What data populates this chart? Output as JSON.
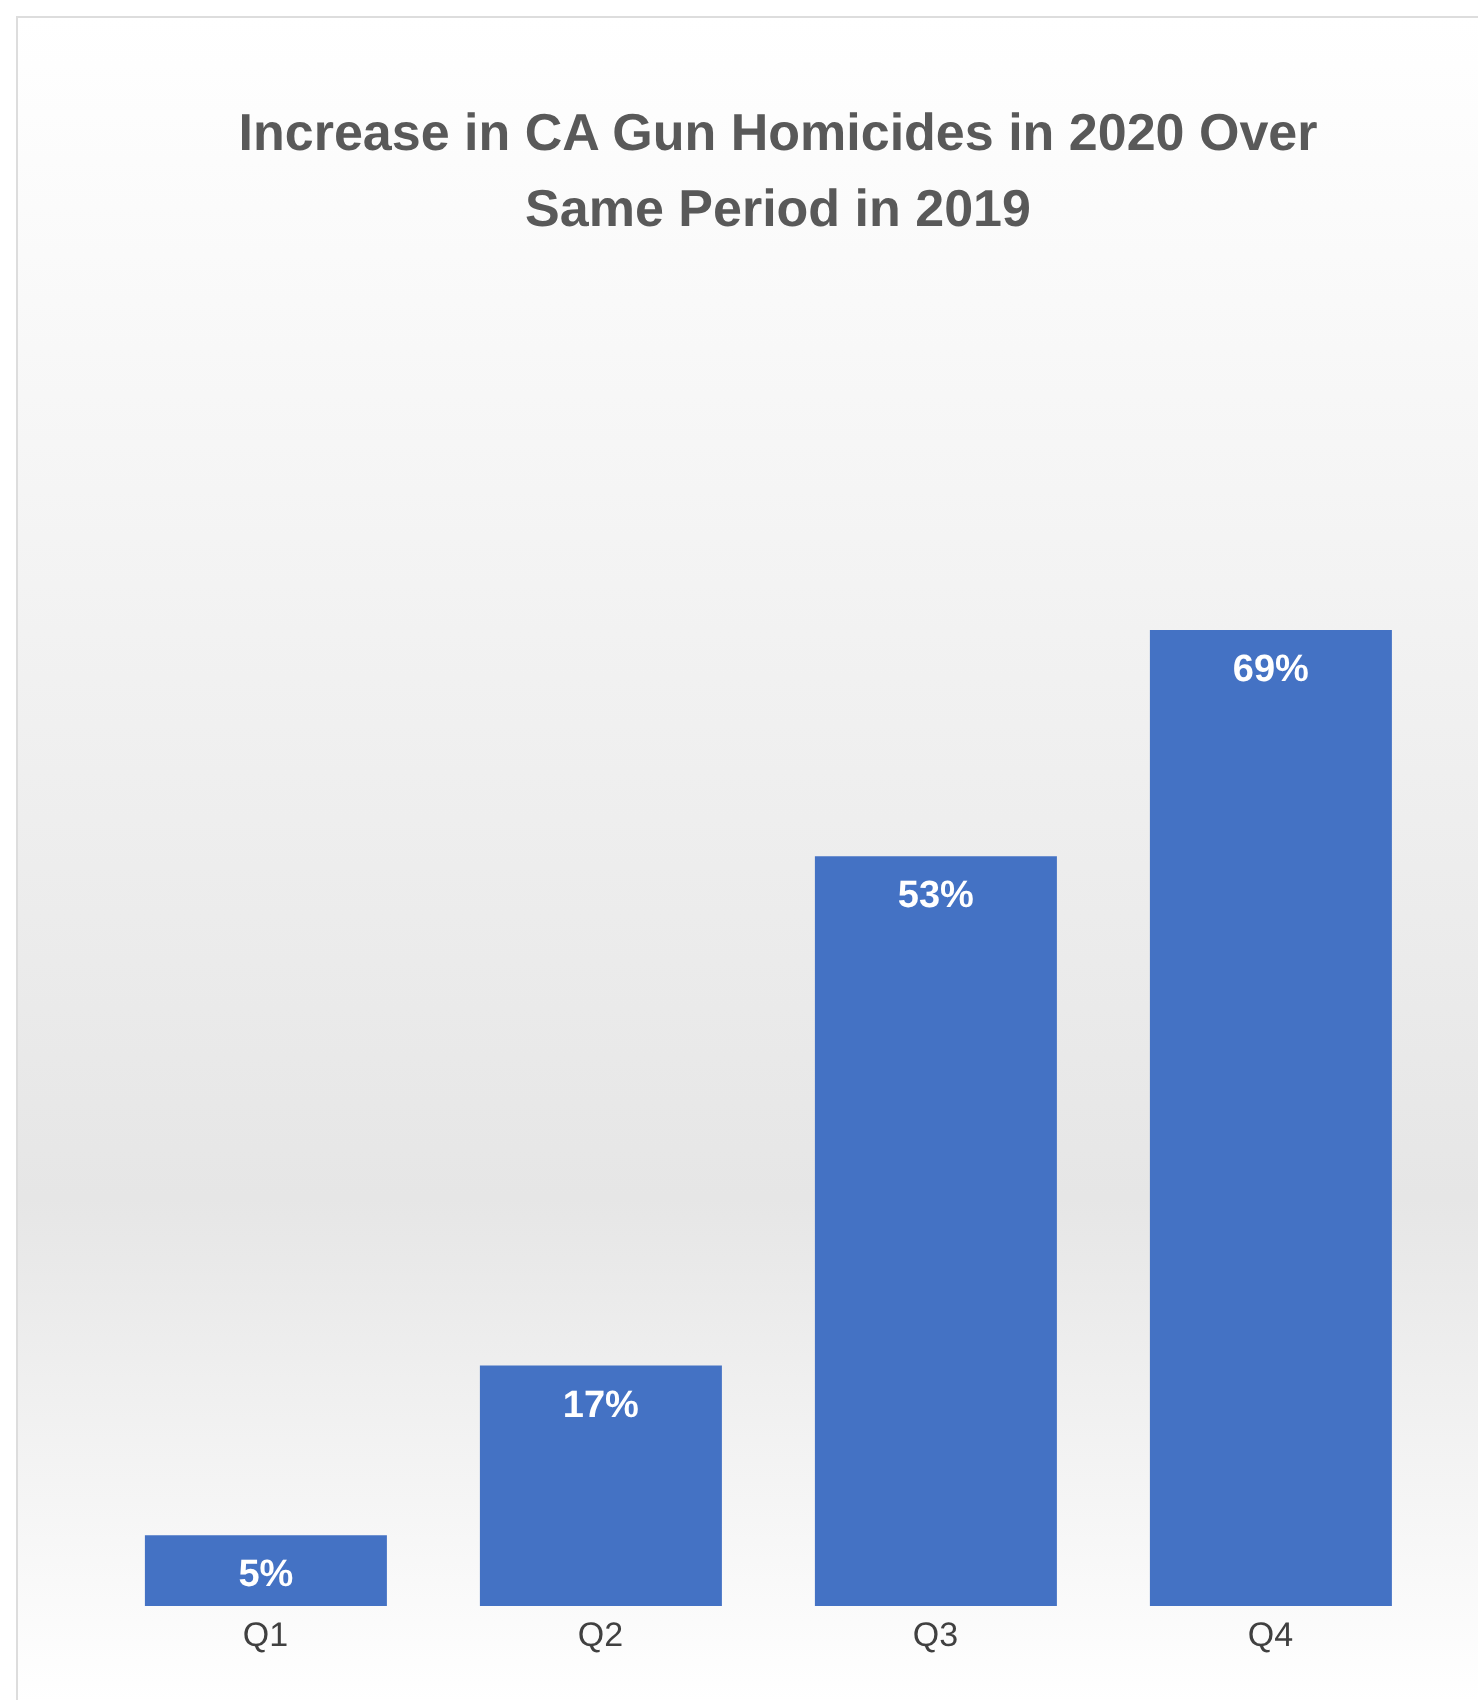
{
  "chart_data": {
    "type": "bar",
    "title": "Increase in CA Gun Homicides in 2020 Over Same Period in 2019",
    "categories": [
      "Q1",
      "Q2",
      "Q3",
      "Q4"
    ],
    "values": [
      5,
      17,
      53,
      69
    ],
    "value_labels": [
      "5%",
      "17%",
      "53%",
      "69%"
    ],
    "color": "#4472c4",
    "grid": false,
    "legend": false
  }
}
